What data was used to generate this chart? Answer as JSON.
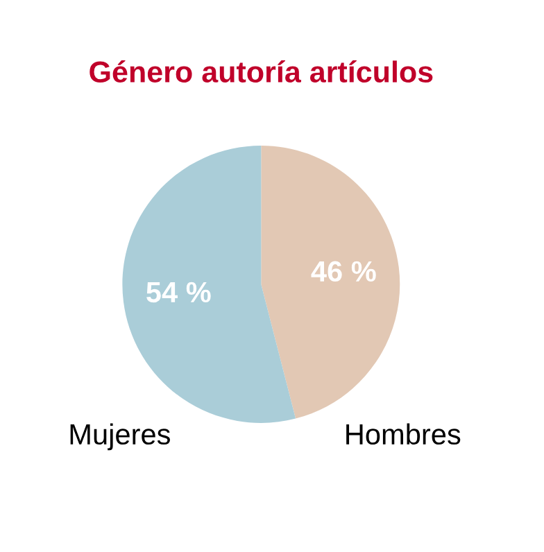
{
  "chart_data": {
    "type": "pie",
    "title": "Género autoría artículos",
    "categories": [
      "Hombres",
      "Mujeres"
    ],
    "values": [
      46,
      54
    ],
    "colors": [
      "#e2c8b4",
      "#aacdd8"
    ],
    "value_labels": [
      "46 %",
      "54 %"
    ]
  }
}
